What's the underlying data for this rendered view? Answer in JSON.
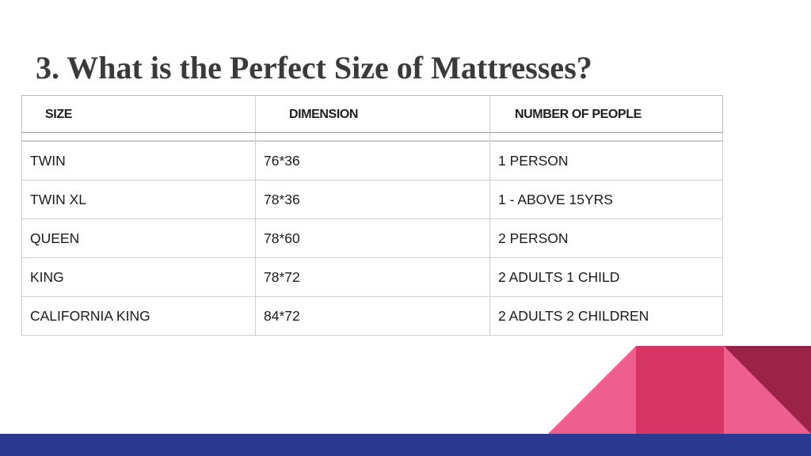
{
  "title": "3. What is the Perfect Size of Mattresses?",
  "table": {
    "headers": [
      "SIZE",
      "DIMENSION",
      "NUMBER OF PEOPLE"
    ],
    "rows": [
      [
        "TWIN",
        "76*36",
        "1 PERSON"
      ],
      [
        "TWIN XL",
        "78*36",
        "1 - ABOVE 15YRS"
      ],
      [
        "QUEEN",
        "78*60",
        "2 PERSON"
      ],
      [
        "KING",
        "78*72",
        "2 ADULTS 1 CHILD"
      ],
      [
        "CALIFORNIA KING",
        "84*72",
        "2 ADULTS 2 CHILDREN"
      ]
    ]
  },
  "colors": {
    "title": "#3a3a3a",
    "footer_bar": "#2b3990",
    "pink_light": "#ee5e8e",
    "pink_mid": "#d63566",
    "maroon": "#9b2348"
  }
}
